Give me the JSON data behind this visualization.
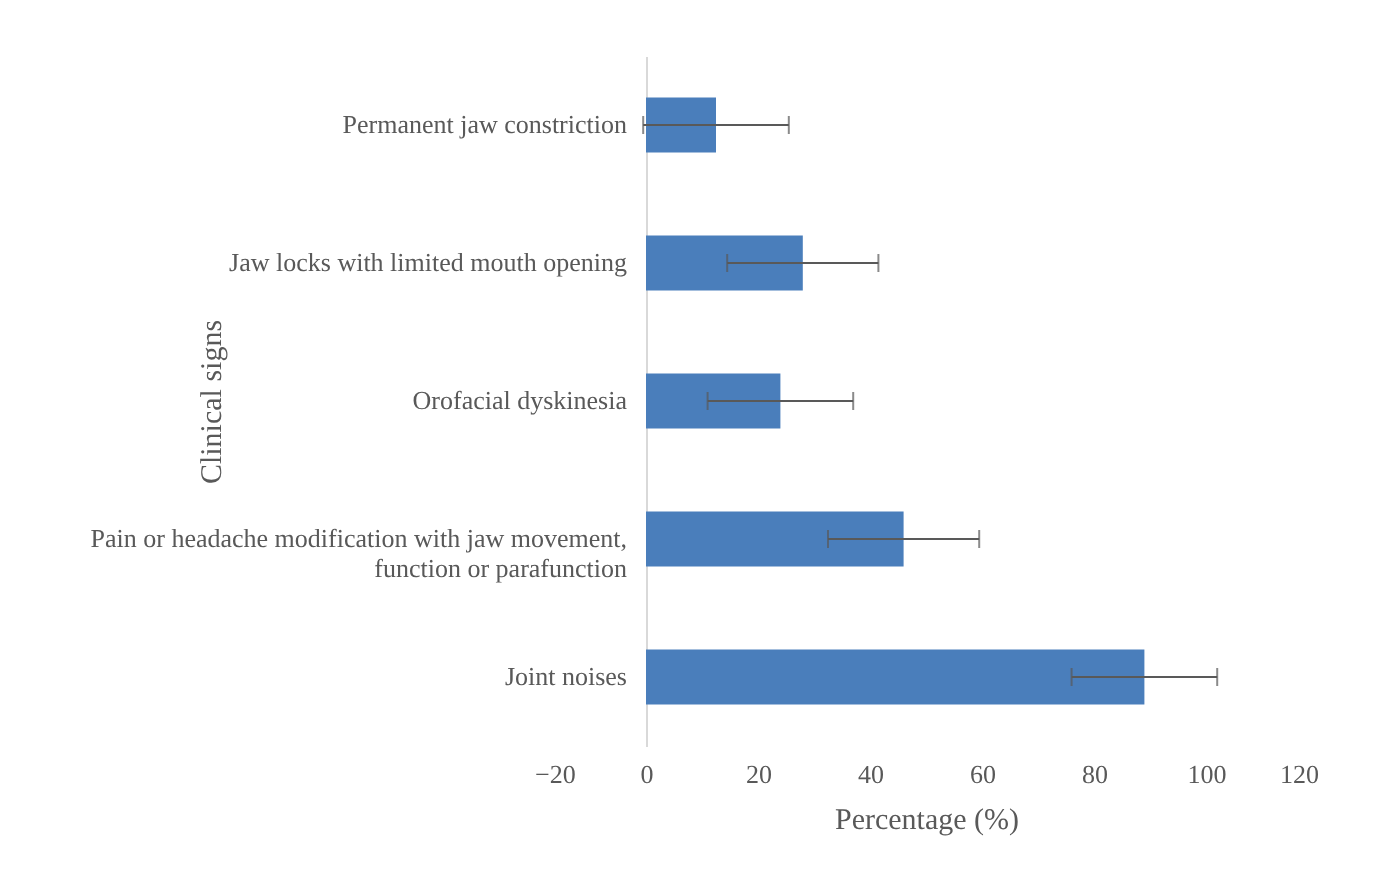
{
  "chart_data": {
    "type": "bar",
    "orientation": "horizontal",
    "xlabel": "Percentage (%)",
    "ylabel": "Clinical signs",
    "categories": [
      "Permanent jaw constriction",
      "Jaw locks with limited mouth opening",
      "Orofacial dyskinesia",
      "Pain or headache modification with jaw movement, function or parafunction",
      "Joint noises"
    ],
    "values": [
      12.5,
      28,
      24,
      46,
      89
    ],
    "errors": [
      13,
      13.5,
      13,
      13.5,
      13
    ],
    "color": "#4a7ebb",
    "xlim": [
      -20,
      120
    ],
    "xticks": [
      -20,
      0,
      20,
      40,
      60,
      80,
      100,
      120
    ],
    "grid": false
  }
}
